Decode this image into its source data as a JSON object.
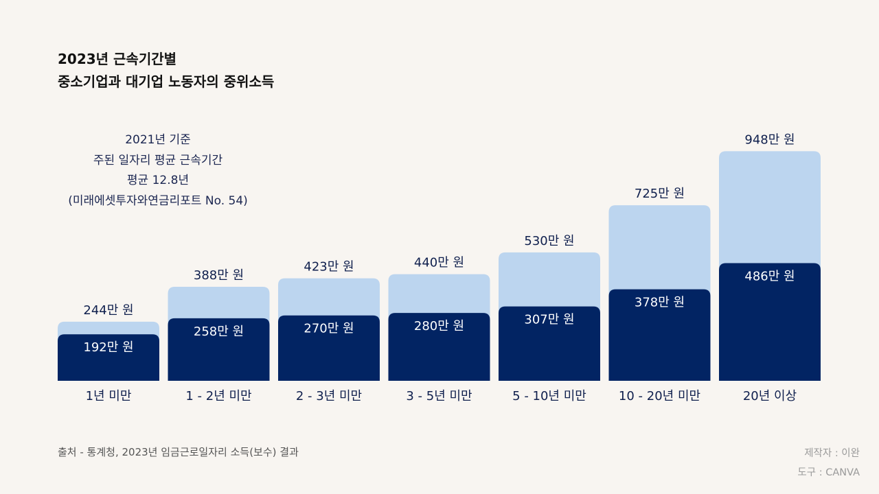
{
  "title": {
    "line1": "2023년 근속기간별",
    "line2": "중소기업과 대기업 노동자의 중위소득"
  },
  "note": {
    "line1": "2021년 기준",
    "line2": "주된 일자리 평균 근속기간",
    "line3": "평균 12.8년",
    "line4": "(미래에셋투자와연금리포트 No. 54)"
  },
  "footer": {
    "source": "출처 - 통계청, 2023년 임금근로일자리 소득(보수) 결과",
    "author": "제작자 : 이완",
    "tool": "도구 : CANVA"
  },
  "colors": {
    "large": "#bcd5ef",
    "sme": "#022463",
    "sme_text": "#ffffff",
    "text": "#0f1f4d"
  },
  "chart_data": {
    "type": "bar",
    "title": "2023년 근속기간별 중소기업과 대기업 노동자의 중위소득",
    "categories": [
      "1년 미만",
      "1 - 2년 미만",
      "2 - 3년 미만",
      "3 - 5년 미만",
      "5 - 10년 미만",
      "10 - 20년 미만",
      "20년 이상"
    ],
    "series": [
      {
        "name": "대기업",
        "values": [
          244,
          388,
          423,
          440,
          530,
          725,
          948
        ],
        "labels": [
          "244만 원",
          "388만 원",
          "423만 원",
          "440만 원",
          "530만 원",
          "725만 원",
          "948만 원"
        ]
      },
      {
        "name": "중소기업",
        "values": [
          192,
          258,
          270,
          280,
          307,
          378,
          486
        ],
        "labels": [
          "192만 원",
          "258만 원",
          "270만 원",
          "280만 원",
          "307만 원",
          "378만 원",
          "486만 원"
        ]
      }
    ],
    "unit": "만 원",
    "ylim": [
      0,
      1000
    ],
    "grid": false,
    "legend": "none",
    "overlap": true
  }
}
